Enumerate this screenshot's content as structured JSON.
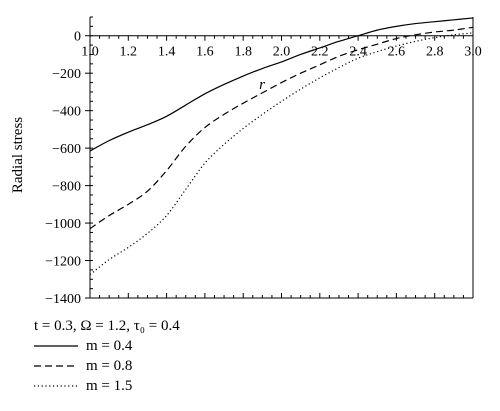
{
  "chart_data": {
    "type": "line",
    "xlabel": "r",
    "ylabel": "Radial stress",
    "xlim": [
      1.0,
      3.0
    ],
    "ylim": [
      -1400,
      100
    ],
    "xticks": [
      "1.0",
      "1.2",
      "1.4",
      "1.6",
      "1.8",
      "2.0",
      "2.2",
      "2.4",
      "2.6",
      "2.8",
      "3.0"
    ],
    "yticks": [
      "0",
      "−200",
      "−400",
      "−600",
      "−800",
      "−1000",
      "−1200",
      "−1400"
    ],
    "grid": false,
    "legend_title": "t = 0.3, Ω = 1.2, τ₀ = 0.4",
    "legend_placement": "below",
    "series": [
      {
        "name": "m = 0.4",
        "style": "solid",
        "x": [
          1.0,
          1.1,
          1.2,
          1.3,
          1.4,
          1.5,
          1.6,
          1.7,
          1.8,
          1.9,
          2.0,
          2.1,
          2.2,
          2.3,
          2.4,
          2.5,
          2.6,
          2.7,
          2.8,
          2.9,
          3.0
        ],
        "y": [
          -615,
          -560,
          -515,
          -475,
          -430,
          -370,
          -310,
          -260,
          -215,
          -175,
          -140,
          -100,
          -65,
          -30,
          0,
          30,
          50,
          65,
          75,
          85,
          95
        ]
      },
      {
        "name": "m = 0.8",
        "style": "dashed",
        "x": [
          1.0,
          1.1,
          1.2,
          1.3,
          1.4,
          1.5,
          1.6,
          1.7,
          1.8,
          1.9,
          2.0,
          2.1,
          2.2,
          2.3,
          2.4,
          2.5,
          2.6,
          2.7,
          2.8,
          2.9,
          3.0
        ],
        "y": [
          -1030,
          -960,
          -900,
          -830,
          -720,
          -590,
          -490,
          -420,
          -360,
          -305,
          -250,
          -200,
          -155,
          -110,
          -75,
          -45,
          -15,
          5,
          20,
          30,
          45
        ]
      },
      {
        "name": "m = 1.5",
        "style": "dotted",
        "x": [
          1.0,
          1.1,
          1.2,
          1.3,
          1.4,
          1.5,
          1.6,
          1.7,
          1.8,
          1.9,
          2.0,
          2.1,
          2.2,
          2.3,
          2.4,
          2.5,
          2.6,
          2.7,
          2.8,
          2.9,
          3.0
        ],
        "y": [
          -1275,
          -1195,
          -1130,
          -1055,
          -960,
          -820,
          -680,
          -580,
          -495,
          -420,
          -350,
          -285,
          -225,
          -170,
          -120,
          -85,
          -55,
          -30,
          -10,
          5,
          15
        ]
      }
    ]
  }
}
